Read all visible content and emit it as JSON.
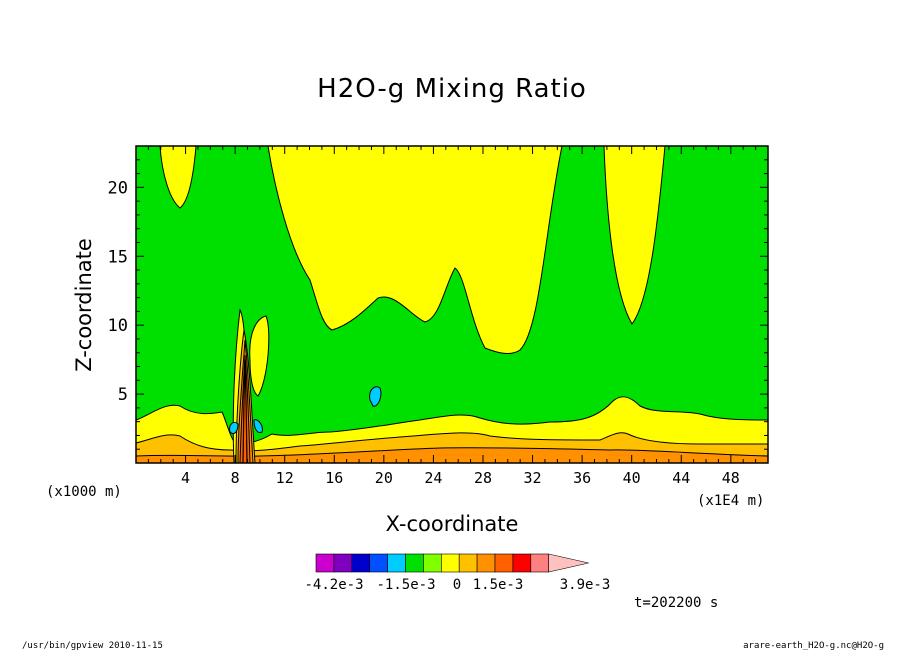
{
  "chart_data": {
    "type": "heatmap",
    "title": "H2O-g Mixing Ratio",
    "xlabel": "X-coordinate",
    "ylabel": "Z-coordinate",
    "x_unit_label": "(x1000 m)",
    "x_scale_label": "(x1E4 m)",
    "xlim": [
      0,
      51
    ],
    "ylim": [
      0,
      23
    ],
    "x_ticks": [
      4,
      8,
      12,
      16,
      20,
      24,
      28,
      32,
      36,
      40,
      44,
      48
    ],
    "y_ticks": [
      5,
      10,
      15,
      20
    ],
    "colorbar": {
      "colors": [
        "#cc00cc",
        "#8000c0",
        "#0000cc",
        "#0050ff",
        "#00ccff",
        "#00e000",
        "#80ff00",
        "#ffff00",
        "#ffc000",
        "#ff9000",
        "#ff6000",
        "#ff0000",
        "#ff8080",
        "#ffc0c0"
      ],
      "labels": [
        "-4.2e-3",
        "-1.5e-3",
        "0",
        "1.5e-3",
        "3.9e-3"
      ]
    },
    "time_label": "t=202200 s"
  },
  "footer": {
    "left": "/usr/bin/gpview   2010-11-15",
    "right": "arare-earth_H2O-g.nc@H2O-g"
  }
}
